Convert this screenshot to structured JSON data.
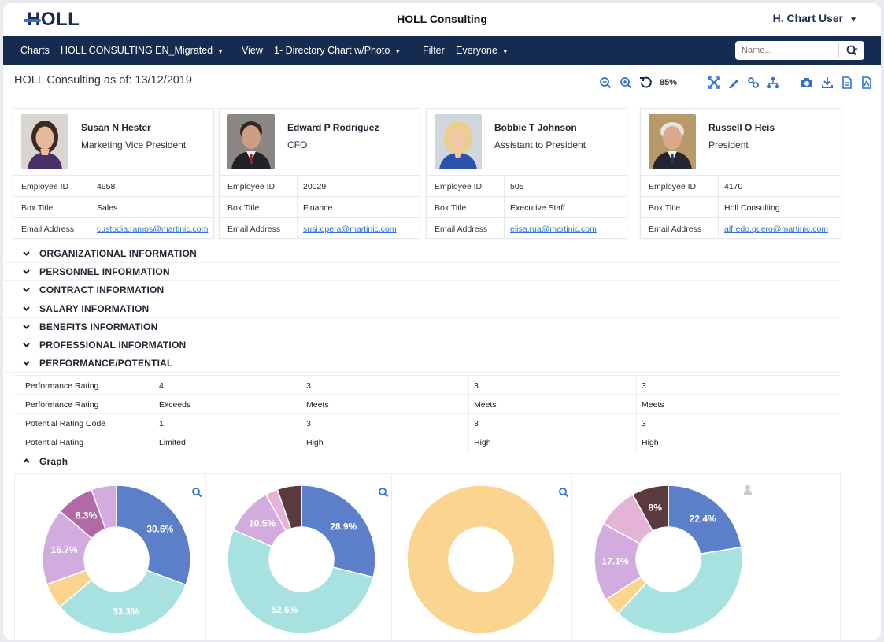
{
  "app": {
    "logo": "HOLL",
    "title": "HOLL Consulting",
    "user": "H. Chart User"
  },
  "nav": {
    "charts_label": "Charts",
    "charts_value": "HOLL CONSULTING EN_Migrated",
    "view_label": "View",
    "view_value": "1- Directory Chart w/Photo",
    "filter_label": "Filter",
    "filter_value": "Everyone",
    "search_placeholder": "Name..."
  },
  "page": {
    "title": "HOLL Consulting as of: 13/12/2019",
    "zoom": "85%"
  },
  "toolbar_icons": [
    "zoom-out-icon",
    "zoom-in-icon",
    "reset-zoom-icon",
    "fit-screen-icon",
    "edit-icon",
    "link-icon",
    "hierarchy-icon",
    "camera-icon",
    "download-icon",
    "export-doc-icon",
    "export-pdf-icon"
  ],
  "field_labels": {
    "employee_id": "Employee ID",
    "box_title": "Box Title",
    "email": "Email Address"
  },
  "employees": [
    {
      "name": "Susan N Hester",
      "title": "Marketing Vice President",
      "employee_id": "4958",
      "box_title": "Sales",
      "email": "custodia.ramos@martinic.com"
    },
    {
      "name": "Edward P Rodriguez",
      "title": "CFO",
      "employee_id": "20029",
      "box_title": "Finance",
      "email": "susi.opera@martinic.com"
    },
    {
      "name": "Bobbie T Johnson",
      "title": "Assistant to President",
      "employee_id": "505",
      "box_title": "Executive Staff",
      "email": "elisa.rua@martinic.com"
    },
    {
      "name": "Russell O Heis",
      "title": "President",
      "employee_id": "4170",
      "box_title": "Holl Consulting",
      "email": "alfredo.quero@martinic.com"
    }
  ],
  "sections": [
    {
      "label": "ORGANIZATIONAL INFORMATION",
      "expanded": false
    },
    {
      "label": "PERSONNEL INFORMATION",
      "expanded": false
    },
    {
      "label": "CONTRACT INFORMATION",
      "expanded": false
    },
    {
      "label": "SALARY INFORMATION",
      "expanded": false
    },
    {
      "label": "BENEFITS INFORMATION",
      "expanded": false
    },
    {
      "label": "PROFESSIONAL INFORMATION",
      "expanded": false
    },
    {
      "label": "PERFORMANCE/POTENTIAL",
      "expanded": true
    }
  ],
  "performance": {
    "rows": [
      {
        "label": "Performance Rating",
        "values": [
          "4",
          "3",
          "3",
          "3"
        ]
      },
      {
        "label": "Performance Rating",
        "values": [
          "Exceeds",
          "Meets",
          "Meets",
          "Meets"
        ]
      },
      {
        "label": "Potential Rating Code",
        "values": [
          "1",
          "3",
          "3",
          "3"
        ]
      },
      {
        "label": "Potential Rating",
        "values": [
          "Limited",
          "High",
          "High",
          "High"
        ]
      }
    ]
  },
  "graph": {
    "label": "Graph",
    "expanded": true
  },
  "colors": {
    "navy": "#162b50",
    "accent": "#2f6fd6",
    "blue": "#5b7fc9",
    "teal": "#a7e1e0",
    "orange": "#fbd48f",
    "lavender": "#d2acdf",
    "mauve": "#b06aa6",
    "maroon": "#5b3a3e",
    "pink": "#e5b3d6"
  },
  "chart_data": [
    {
      "type": "pie",
      "donut": true,
      "slices": [
        {
          "value": 30.6,
          "label": "30.6%",
          "color": "#5b7fc9"
        },
        {
          "value": 33.3,
          "label": "33.3%",
          "color": "#a7e1e0"
        },
        {
          "value": 5.6,
          "label": "",
          "color": "#fbd48f"
        },
        {
          "value": 16.7,
          "label": "16.7%",
          "color": "#d2acdf"
        },
        {
          "value": 8.3,
          "label": "8.3%",
          "color": "#b06aa6"
        },
        {
          "value": 5.5,
          "label": "",
          "color": "#d2acdf"
        }
      ]
    },
    {
      "type": "pie",
      "donut": true,
      "slices": [
        {
          "value": 28.9,
          "label": "28.9%",
          "color": "#5b7fc9"
        },
        {
          "value": 52.6,
          "label": "52.6%",
          "color": "#a7e1e0"
        },
        {
          "value": 10.5,
          "label": "10.5%",
          "color": "#d2acdf"
        },
        {
          "value": 2.7,
          "label": "",
          "color": "#e5b3d6"
        },
        {
          "value": 5.3,
          "label": "",
          "color": "#5b3a3e"
        }
      ]
    },
    {
      "type": "pie",
      "donut": true,
      "slices": [
        {
          "value": 100,
          "label": "",
          "color": "#fbd48f"
        }
      ]
    },
    {
      "type": "pie",
      "donut": true,
      "slices": [
        {
          "value": 22.4,
          "label": "22.4%",
          "color": "#5b7fc9"
        },
        {
          "value": 39.5,
          "label": "",
          "color": "#a7e1e0"
        },
        {
          "value": 4.0,
          "label": "",
          "color": "#fbd48f"
        },
        {
          "value": 17.1,
          "label": "17.1%",
          "color": "#d2acdf"
        },
        {
          "value": 9.0,
          "label": "",
          "color": "#e5b3d6"
        },
        {
          "value": 8.0,
          "label": "8%",
          "color": "#5b3a3e"
        }
      ]
    }
  ]
}
